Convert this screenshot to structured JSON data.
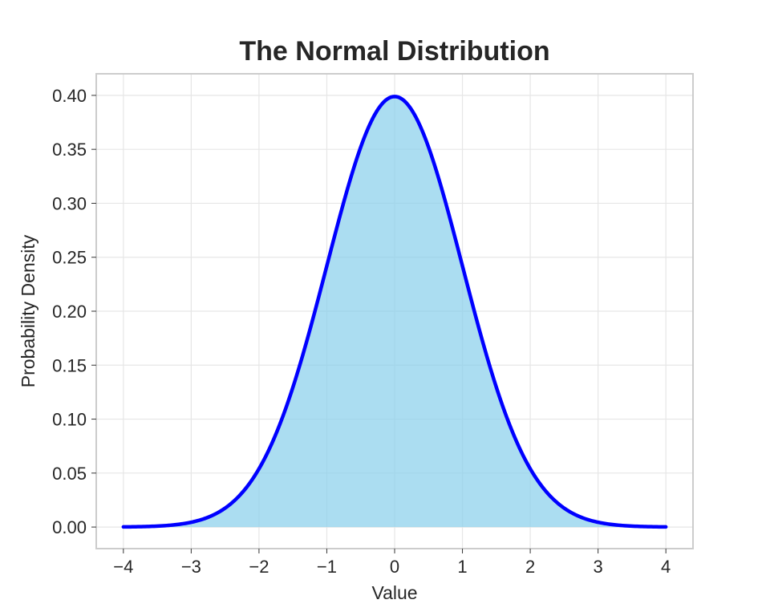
{
  "chart_data": {
    "type": "area",
    "title": "The Normal Distribution",
    "xlabel": "Value",
    "ylabel": "Probability Density",
    "xlim": [
      -4.4,
      4.4
    ],
    "ylim": [
      -0.02,
      0.42
    ],
    "grid": true,
    "x_ticks": [
      -4,
      -3,
      -2,
      -1,
      0,
      1,
      2,
      3,
      4
    ],
    "x_tick_labels": [
      "−4",
      "−3",
      "−2",
      "−1",
      "0",
      "1",
      "2",
      "3",
      "4"
    ],
    "y_ticks": [
      0.0,
      0.05,
      0.1,
      0.15,
      0.2,
      0.25,
      0.3,
      0.35,
      0.4
    ],
    "y_tick_labels": [
      "0.00",
      "0.05",
      "0.10",
      "0.15",
      "0.20",
      "0.25",
      "0.30",
      "0.35",
      "0.40"
    ],
    "series": [
      {
        "x": [
          -4.0,
          -3.5,
          -3.0,
          -2.5,
          -2.0,
          -1.5,
          -1.0,
          -0.5,
          0.0,
          0.5,
          1.0,
          1.5,
          2.0,
          2.5,
          3.0,
          3.5,
          4.0
        ],
        "values": [
          0.0001,
          0.0009,
          0.0044,
          0.0175,
          0.054,
          0.1295,
          0.242,
          0.3521,
          0.3989,
          0.3521,
          0.242,
          0.1295,
          0.054,
          0.0175,
          0.0044,
          0.0009,
          0.0001
        ],
        "line_color": "#0000ff",
        "fill_color": "#87ceeb"
      }
    ]
  }
}
